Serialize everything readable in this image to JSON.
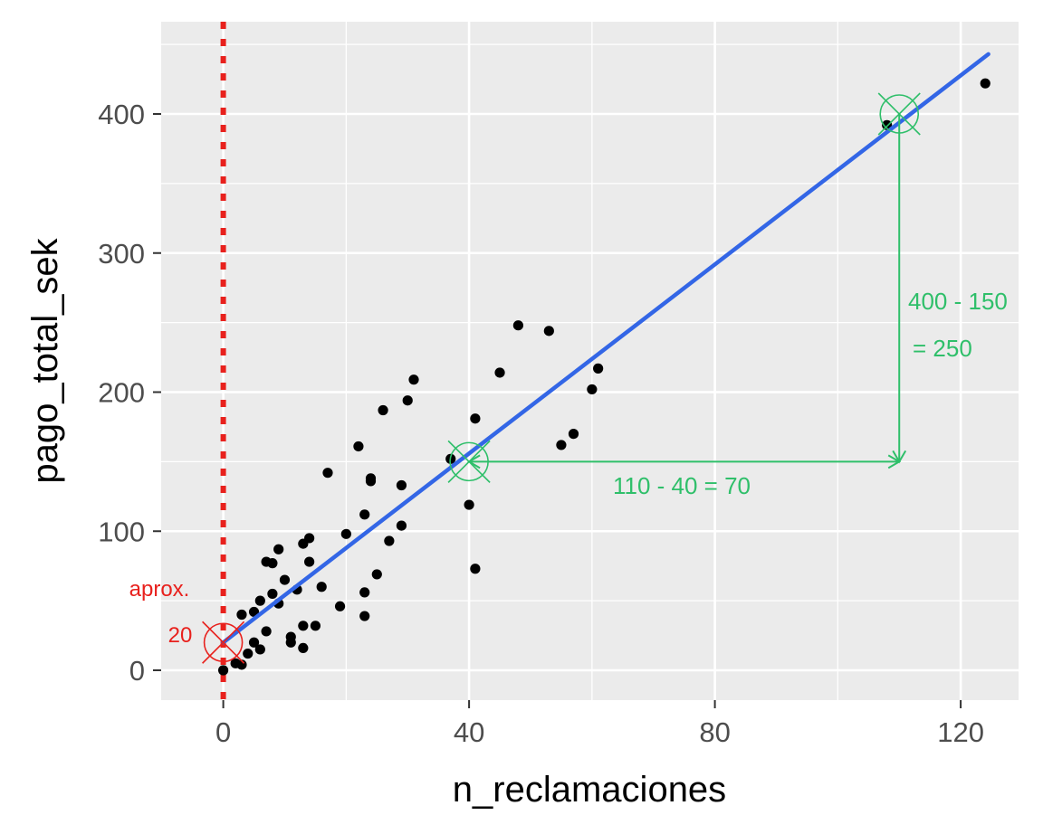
{
  "chart_data": {
    "type": "scatter",
    "xlabel": "n_reclamaciones",
    "ylabel": "pago_total_sek",
    "xlim": [
      -10,
      130
    ],
    "ylim": [
      -22,
      465
    ],
    "x_ticks": [
      0,
      40,
      80,
      120
    ],
    "y_ticks": [
      0,
      100,
      200,
      300,
      400
    ],
    "grid": true,
    "points": [
      [
        0,
        0
      ],
      [
        2,
        5
      ],
      [
        3,
        4
      ],
      [
        4,
        12
      ],
      [
        5,
        20
      ],
      [
        6,
        15
      ],
      [
        3,
        40
      ],
      [
        5,
        42
      ],
      [
        6,
        50
      ],
      [
        7,
        28
      ],
      [
        8,
        55
      ],
      [
        9,
        48
      ],
      [
        10,
        65
      ],
      [
        11,
        24
      ],
      [
        11,
        20
      ],
      [
        12,
        58
      ],
      [
        13,
        16
      ],
      [
        13,
        32
      ],
      [
        15,
        32
      ],
      [
        7,
        78
      ],
      [
        8,
        77
      ],
      [
        9,
        87
      ],
      [
        13,
        91
      ],
      [
        14,
        95
      ],
      [
        14,
        78
      ],
      [
        16,
        60
      ],
      [
        17,
        142
      ],
      [
        19,
        46
      ],
      [
        20,
        98
      ],
      [
        22,
        161
      ],
      [
        23,
        112
      ],
      [
        23,
        56
      ],
      [
        23,
        39
      ],
      [
        24,
        138
      ],
      [
        24,
        136
      ],
      [
        25,
        69
      ],
      [
        26,
        187
      ],
      [
        27,
        93
      ],
      [
        29,
        104
      ],
      [
        29,
        133
      ],
      [
        30,
        194
      ],
      [
        31,
        209
      ],
      [
        37,
        152
      ],
      [
        40,
        119
      ],
      [
        41,
        181
      ],
      [
        41,
        73
      ],
      [
        45,
        214
      ],
      [
        48,
        248
      ],
      [
        53,
        244
      ],
      [
        55,
        162
      ],
      [
        57,
        170
      ],
      [
        60,
        202
      ],
      [
        61,
        217
      ],
      [
        108,
        392
      ],
      [
        124,
        422
      ]
    ],
    "regression_line": {
      "from": [
        0,
        20
      ],
      "to": [
        124.5,
        443
      ],
      "color": "#3366e6"
    },
    "intercept_line": {
      "x": 0,
      "color": "#e8211d",
      "style": "dotted"
    },
    "markers": [
      {
        "x": 0,
        "y": 20,
        "color": "#e8211d"
      },
      {
        "x": 40,
        "y": 150,
        "color": "#2fbf6a"
      },
      {
        "x": 110,
        "y": 400,
        "color": "#2fbf6a"
      }
    ],
    "point_color": "#000000",
    "panel_color": "#ebebeb",
    "grid_color": "#ffffff"
  },
  "annotations": {
    "intercept_line1": "aprox.",
    "intercept_line2": "20",
    "rise_line1": "400 - 150",
    "rise_line2": "= 250",
    "run": "110 - 40 = 70"
  },
  "colors": {
    "green": "#2fbf6a",
    "red": "#e8211d"
  }
}
